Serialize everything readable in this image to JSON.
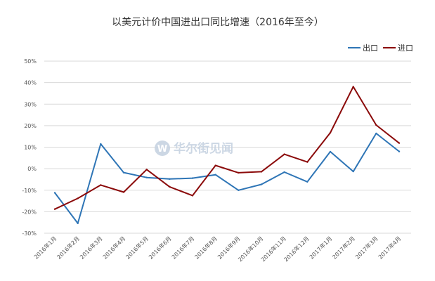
{
  "watermark": {
    "logo_letter": "W",
    "text": "华尔街见闻"
  },
  "chart_data": {
    "type": "line",
    "title": "以美元计价中国进出口同比增速（2016年至今）",
    "categories": [
      "2016年1月",
      "2016年2月",
      "2016年3月",
      "2016年4月",
      "2016年5月",
      "2016年6月",
      "2016年7月",
      "2016年8月",
      "2016年9月",
      "2016年10月",
      "2016年11月",
      "2016年12月",
      "2017年1月",
      "2017年2月",
      "2017年3月",
      "2017年4月"
    ],
    "series": [
      {
        "name": "出口",
        "color": "#2e75b6",
        "values": [
          -11.2,
          -25.4,
          11.5,
          -1.8,
          -4.1,
          -4.8,
          -4.4,
          -2.8,
          -10.0,
          -7.3,
          -1.6,
          -6.1,
          7.9,
          -1.3,
          16.4,
          8.0
        ]
      },
      {
        "name": "进口",
        "color": "#8b0a0a",
        "values": [
          -18.8,
          -13.8,
          -7.6,
          -10.9,
          -0.4,
          -8.4,
          -12.5,
          1.5,
          -1.9,
          -1.4,
          6.7,
          3.1,
          16.7,
          38.1,
          20.3,
          11.9
        ]
      }
    ],
    "yticks": [
      "-30%",
      "-20%",
      "-10%",
      "0%",
      "10%",
      "20%",
      "30%",
      "40%",
      "50%"
    ],
    "ylim": [
      -30,
      50
    ],
    "grid": true,
    "legend": "top-right"
  }
}
